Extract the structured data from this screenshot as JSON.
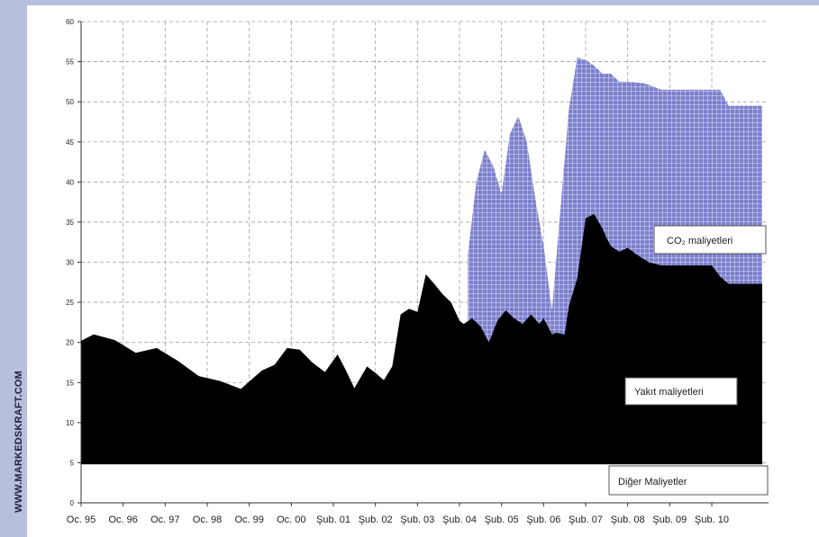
{
  "watermark": "WWW.MARKEDSKRAFT.COM",
  "chart_data": {
    "type": "area",
    "title": "",
    "xlabel": "",
    "ylabel": "",
    "ylim": [
      0,
      60
    ],
    "y_ticks": [
      0,
      5,
      10,
      15,
      20,
      25,
      30,
      35,
      40,
      45,
      50,
      55,
      60
    ],
    "x_tick_labels": [
      "Oc. 95",
      "Oc. 96",
      "Oc. 97",
      "Oc. 98",
      "Oc. 99",
      "Oc. 00",
      "Şub. 01",
      "Şub. 02",
      "Şub. 03",
      "Şub. 04",
      "Şub. 05",
      "Şub. 06",
      "Şub. 07",
      "Şub. 08",
      "Şub. 09",
      "Şub. 10"
    ],
    "grid": true,
    "other_costs_level": 4.8,
    "colors": {
      "fuel": "#000000",
      "co2": "#7d80cc",
      "grid": "#a0a0a0"
    },
    "series": [
      {
        "name": "Yakıt maliyetleri",
        "x": [
          0,
          0.3,
          0.8,
          1.3,
          1.8,
          2.3,
          2.8,
          3.3,
          3.8,
          4.3,
          4.6,
          4.9,
          5.2,
          5.5,
          5.8,
          6.1,
          6.3,
          6.5,
          6.8,
          7.0,
          7.2,
          7.4,
          7.6,
          7.8,
          8.0,
          8.2,
          8.4,
          8.6,
          8.8,
          9.0,
          9.1,
          9.3,
          9.5,
          9.7,
          9.9,
          10.1,
          10.3,
          10.5,
          10.7,
          10.9,
          11.0,
          11.2,
          11.3,
          11.5,
          11.6,
          11.8,
          12.0,
          12.2,
          12.4,
          12.5,
          12.6,
          12.8,
          13.0,
          13.2,
          13.5,
          13.8,
          14.0,
          14.2,
          14.5,
          14.8,
          15.0,
          15.2,
          15.4,
          15.6,
          15.8,
          16.0,
          16.2
        ],
        "y": [
          20.2,
          21.0,
          20.3,
          18.7,
          19.3,
          17.7,
          15.8,
          15.2,
          14.2,
          16.5,
          17.2,
          19.3,
          19.1,
          17.5,
          16.3,
          18.5,
          16.5,
          14.3,
          17.0,
          16.2,
          15.3,
          17.0,
          23.5,
          24.2,
          23.8,
          28.5,
          27.3,
          26.0,
          25.0,
          22.7,
          22.3,
          23.0,
          22.0,
          20.0,
          22.7,
          24.0,
          23.0,
          22.3,
          23.5,
          22.3,
          23.0,
          21.0,
          21.2,
          21.0,
          24.5,
          28.0,
          35.5,
          36.0,
          34.2,
          33.0,
          32.0,
          31.3,
          31.8,
          31.0,
          30.0,
          29.6,
          29.6,
          29.6,
          29.6,
          29.6,
          29.6,
          28.2,
          27.3,
          27.3,
          27.3,
          27.3,
          27.3
        ]
      },
      {
        "name": "CO₂ maliyetleri",
        "x": [
          9.2,
          9.4,
          9.6,
          9.8,
          10.0,
          10.2,
          10.4,
          10.6,
          10.8,
          11.0,
          11.2,
          11.6,
          11.8,
          12.0,
          12.2,
          12.4,
          12.6,
          12.8,
          13.0,
          13.4,
          13.8,
          14.0,
          14.5,
          15.0,
          15.2,
          15.4,
          15.8,
          16.2
        ],
        "y": [
          31.0,
          40.0,
          44.0,
          42.0,
          38.5,
          46.0,
          48.2,
          45.0,
          38.0,
          32.0,
          24.0,
          49.0,
          55.5,
          55.2,
          54.5,
          53.5,
          53.5,
          52.5,
          52.5,
          52.3,
          51.5,
          51.5,
          51.5,
          51.5,
          51.5,
          49.5,
          49.5,
          49.5
        ]
      }
    ],
    "annotations": {
      "co2_label": "CO₂ maliyetleri",
      "fuel_label": "Yakıt maliyetleri",
      "other_label": "Diğer  Maliyetler"
    }
  }
}
